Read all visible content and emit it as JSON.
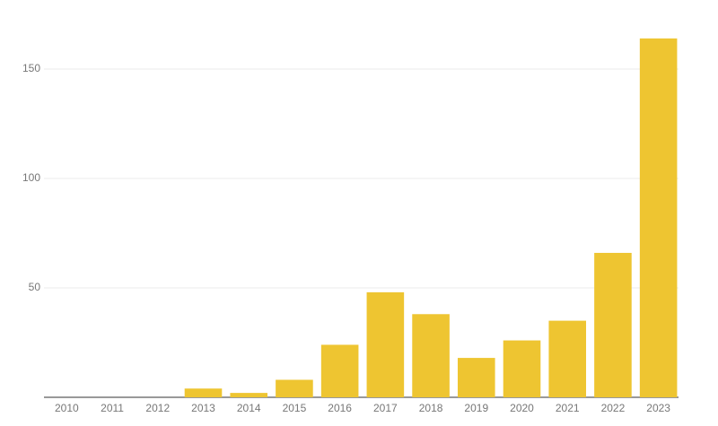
{
  "chart_data": {
    "type": "bar",
    "categories": [
      "2010",
      "2011",
      "2012",
      "2013",
      "2014",
      "2015",
      "2016",
      "2017",
      "2018",
      "2019",
      "2020",
      "2021",
      "2022",
      "2023"
    ],
    "values": [
      0,
      0,
      0,
      4,
      2,
      8,
      24,
      48,
      38,
      18,
      26,
      35,
      66,
      164
    ],
    "color": "#eec531",
    "ylim": [
      0,
      165
    ],
    "yticks": [
      50,
      100,
      150
    ],
    "grid": true
  }
}
